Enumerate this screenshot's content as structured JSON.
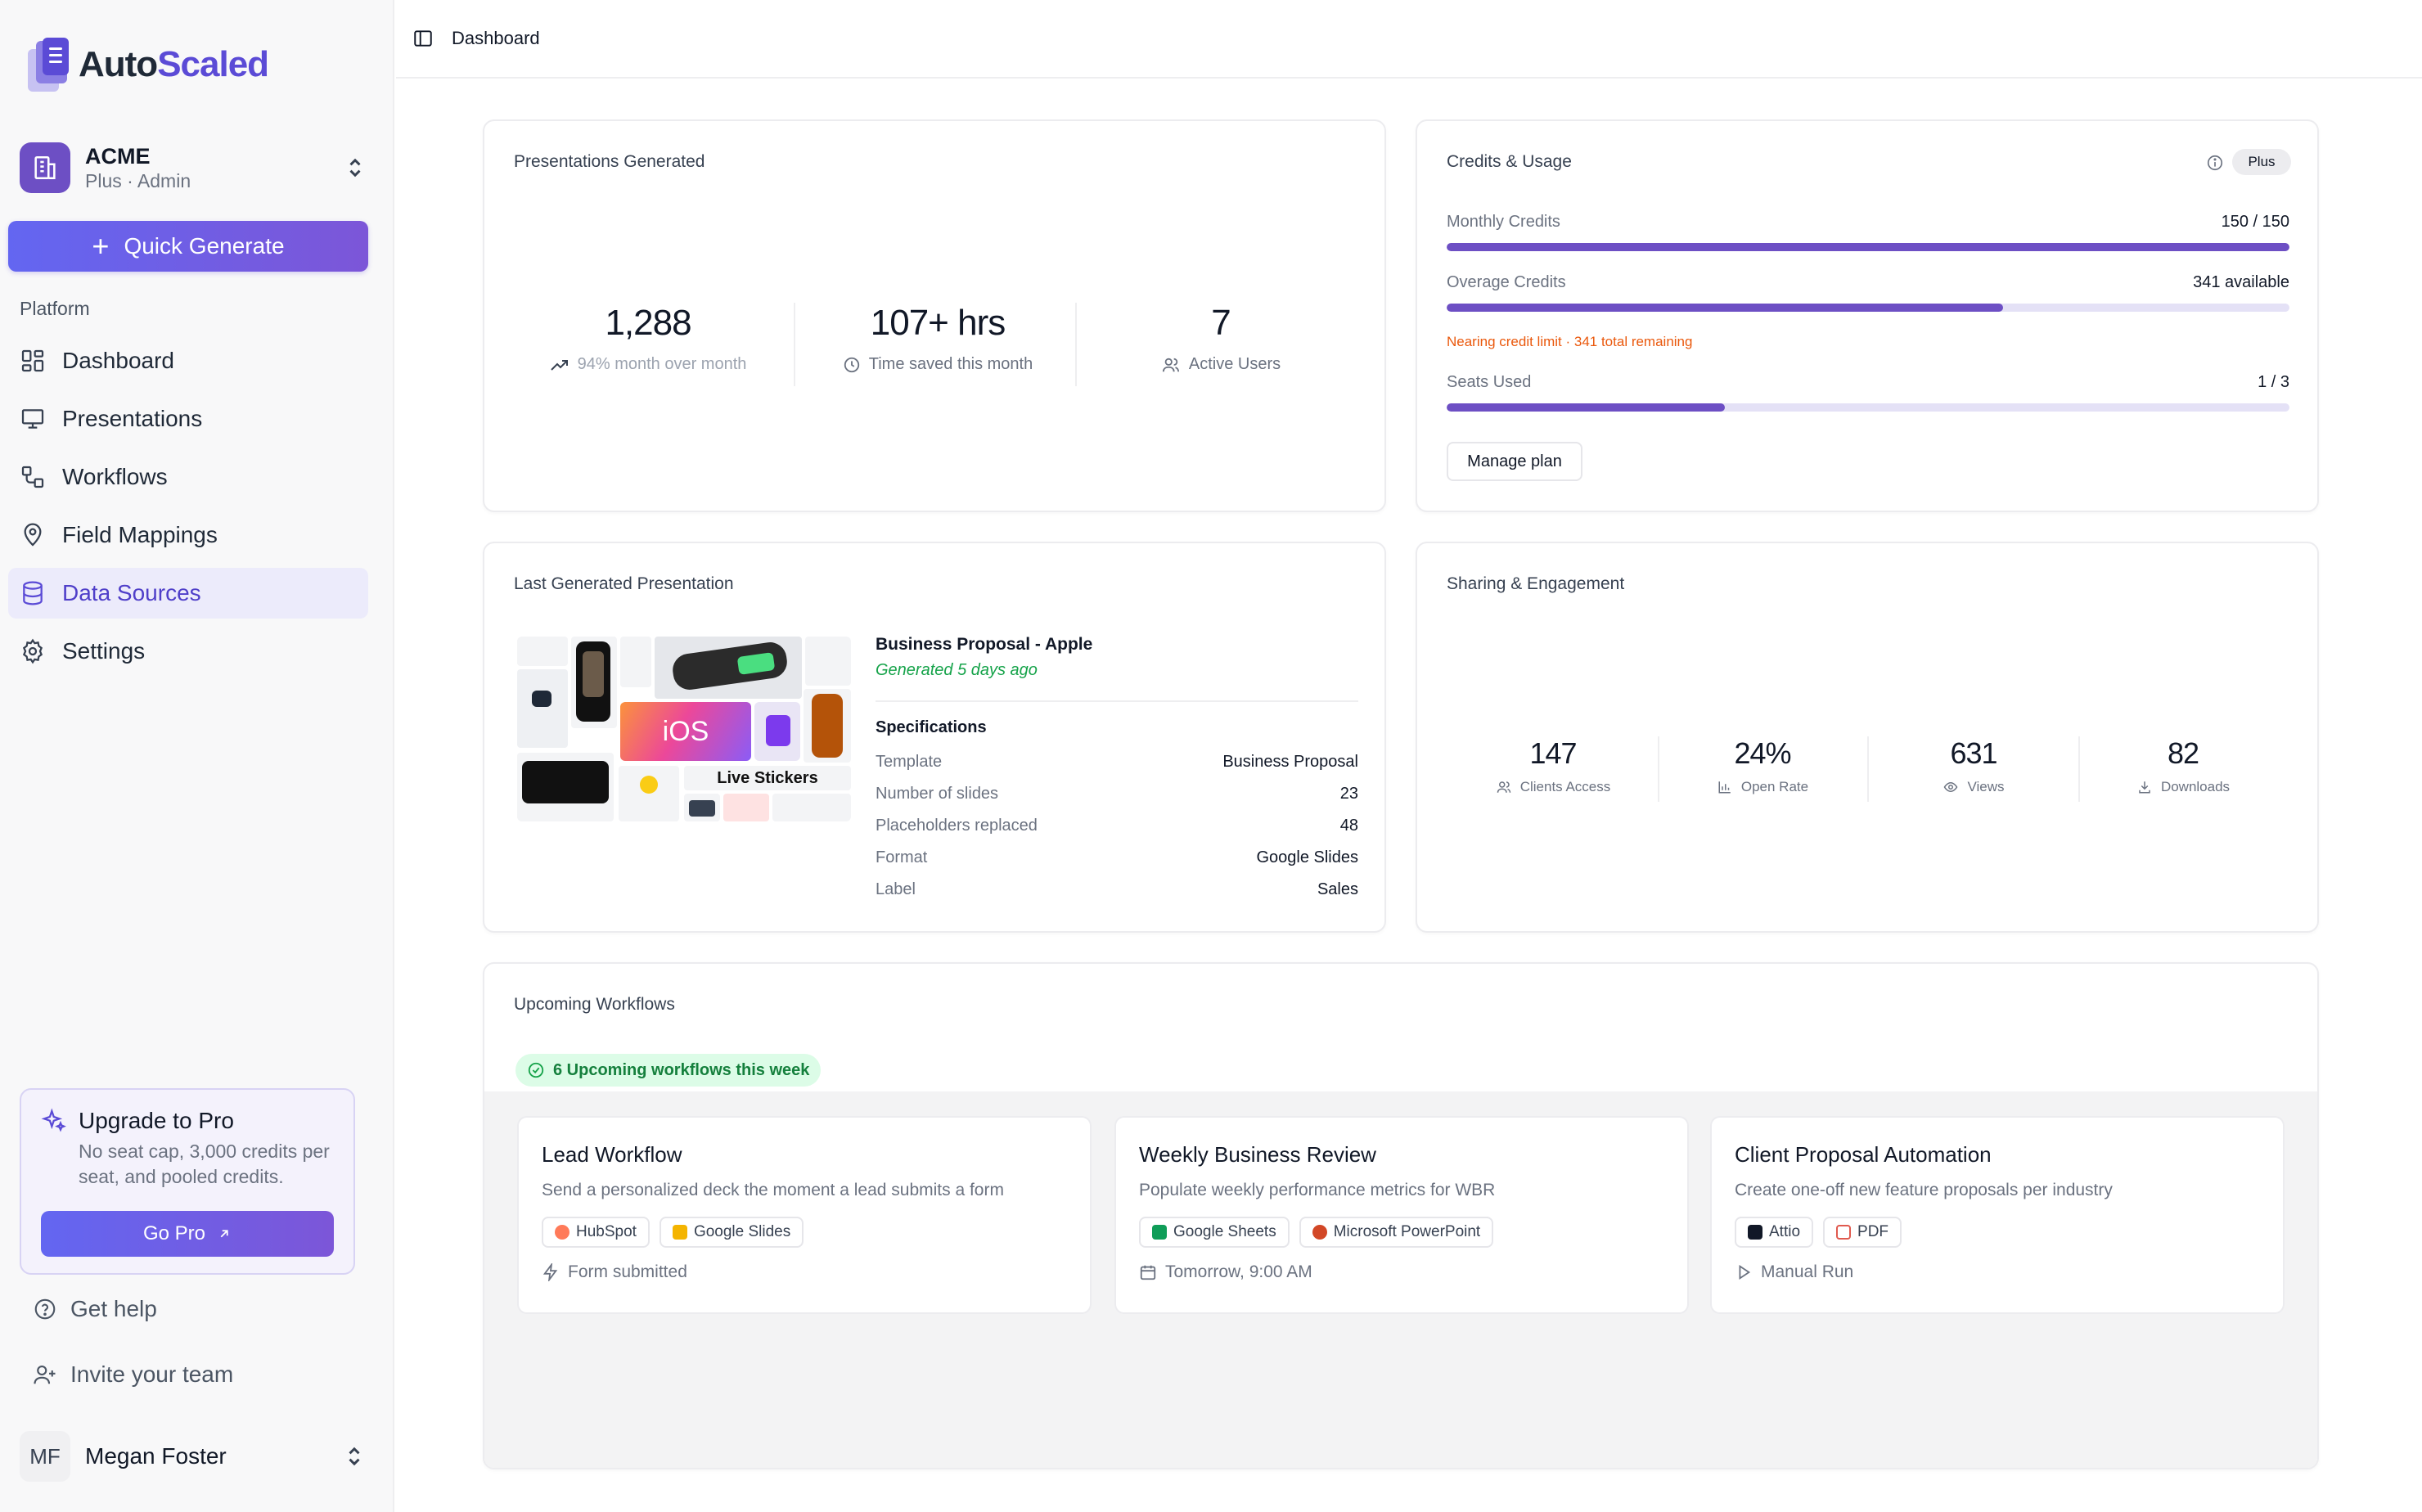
{
  "brand": {
    "name_part1": "Auto",
    "name_part2": "Scaled",
    "accent": "#5b4bd6"
  },
  "org": {
    "name": "ACME",
    "role": "Plus · Admin"
  },
  "quick_generate": "Quick Generate",
  "platform_label": "Platform",
  "nav": [
    {
      "label": "Dashboard",
      "icon": "dashboard-icon"
    },
    {
      "label": "Presentations",
      "icon": "presentation-icon"
    },
    {
      "label": "Workflows",
      "icon": "workflow-icon"
    },
    {
      "label": "Field Mappings",
      "icon": "map-pin-icon"
    },
    {
      "label": "Data Sources",
      "icon": "database-icon",
      "active": true
    },
    {
      "label": "Settings",
      "icon": "gear-icon"
    }
  ],
  "upgrade": {
    "title": "Upgrade to Pro",
    "desc": "No seat cap, 3,000 credits per seat, and pooled credits.",
    "button": "Go Pro"
  },
  "footer": {
    "help": "Get help",
    "invite": "Invite your team"
  },
  "user": {
    "initials": "MF",
    "name": "Megan Foster"
  },
  "breadcrumb": "Dashboard",
  "presentations": {
    "title": "Presentations Generated",
    "stats": [
      {
        "value": "1,288",
        "label": "94% month over month",
        "icon": "trend-up-icon"
      },
      {
        "value": "107+ hrs",
        "label": "Time saved this month",
        "icon": "clock-icon"
      },
      {
        "value": "7",
        "label": "Active Users",
        "icon": "users-icon"
      }
    ]
  },
  "credits": {
    "title": "Credits & Usage",
    "plan_badge": "Plus",
    "monthly": {
      "label": "Monthly Credits",
      "value": "150 / 150",
      "fill": 1.0
    },
    "overage": {
      "label": "Overage Credits",
      "value": "341 available",
      "fill": 0.66
    },
    "warning": "Nearing credit limit · 341 total remaining",
    "seats": {
      "label": "Seats Used",
      "value": "1 / 3",
      "fill": 0.33
    },
    "manage": "Manage plan"
  },
  "last_presentation": {
    "title": "Last Generated Presentation",
    "name": "Business Proposal - Apple",
    "generated": "Generated 5 days ago",
    "specs_title": "Specifications",
    "thumb_text": {
      "ios": "iOS",
      "stickers": "Live Stickers"
    },
    "specs": [
      {
        "key": "Template",
        "value": "Business Proposal"
      },
      {
        "key": "Number of slides",
        "value": "23"
      },
      {
        "key": "Placeholders replaced",
        "value": "48"
      },
      {
        "key": "Format",
        "value": "Google Slides"
      },
      {
        "key": "Label",
        "value": "Sales"
      }
    ]
  },
  "sharing": {
    "title": "Sharing & Engagement",
    "stats": [
      {
        "value": "147",
        "label": "Clients Access",
        "icon": "users-icon"
      },
      {
        "value": "24%",
        "label": "Open Rate",
        "icon": "bar-chart-icon"
      },
      {
        "value": "631",
        "label": "Views",
        "icon": "eye-icon"
      },
      {
        "value": "82",
        "label": "Downloads",
        "icon": "download-icon"
      }
    ]
  },
  "upcoming": {
    "title": "Upcoming Workflows",
    "badge": "6 Upcoming workflows this week",
    "workflows": [
      {
        "name": "Lead Workflow",
        "desc": "Send a personalized deck the moment a lead submits a form",
        "tags": [
          {
            "label": "HubSpot",
            "color": "#ff7a59"
          },
          {
            "label": "Google Slides",
            "color": "#f4b400"
          }
        ],
        "trigger": "Form submitted",
        "trigger_icon": "lightning-icon"
      },
      {
        "name": "Weekly Business Review",
        "desc": "Populate weekly performance metrics for WBR",
        "tags": [
          {
            "label": "Google Sheets",
            "color": "#0f9d58"
          },
          {
            "label": "Microsoft PowerPoint",
            "color": "#d24726"
          }
        ],
        "trigger": "Tomorrow, 9:00 AM",
        "trigger_icon": "calendar-icon"
      },
      {
        "name": "Client Proposal Automation",
        "desc": "Create one-off new feature proposals per industry",
        "tags": [
          {
            "label": "Attio",
            "color": "#111827"
          },
          {
            "label": "PDF",
            "color": "#e05a4f"
          }
        ],
        "trigger": "Manual Run",
        "trigger_icon": "play-icon"
      }
    ]
  }
}
